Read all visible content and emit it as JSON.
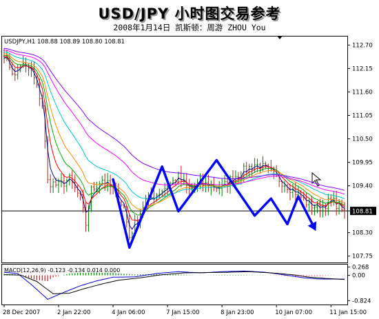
{
  "page": {
    "title": "USD/JPY 小时图交易参考",
    "subtitle": "2008年1月14日   凯斯顿：周游 ZHOU You"
  },
  "chart_data": [
    {
      "type": "line",
      "symbol_label": "USDJPY,H1  108.88 108.89 108.80 108.81",
      "ylim": [
        107.6,
        112.9
      ],
      "y_ticks": [
        "112.70",
        "112.15",
        "111.60",
        "111.05",
        "110.50",
        "109.95",
        "109.40",
        "108.81",
        "108.30",
        "107.75"
      ],
      "y_tick_values": [
        112.7,
        112.15,
        111.6,
        111.05,
        110.5,
        109.95,
        109.4,
        108.81,
        108.3,
        107.75
      ],
      "current_price": 108.81,
      "x_ticks": [
        "28 Dec 2007",
        "2 Jan 22:00",
        "4 Jan 06:00",
        "7 Jan 15:00",
        "8 Jan 23:00",
        "10 Jan 07:00",
        "11 Jan 15:00"
      ],
      "x_tick_index": [
        0,
        20,
        40,
        60,
        80,
        100,
        120
      ],
      "bar_count": 126,
      "price_anchors": [
        [
          0,
          112.5
        ],
        [
          4,
          111.95
        ],
        [
          6,
          112.25
        ],
        [
          10,
          112.1
        ],
        [
          12,
          111.7
        ],
        [
          14,
          111.3
        ],
        [
          16,
          109.5
        ],
        [
          20,
          109.4
        ],
        [
          24,
          109.55
        ],
        [
          28,
          109.1
        ],
        [
          30,
          108.5
        ],
        [
          32,
          109.3
        ],
        [
          36,
          109.55
        ],
        [
          40,
          109.3
        ],
        [
          44,
          108.9
        ],
        [
          46,
          108.2
        ],
        [
          48,
          108.5
        ],
        [
          52,
          109.05
        ],
        [
          56,
          109.2
        ],
        [
          60,
          109.4
        ],
        [
          64,
          109.6
        ],
        [
          68,
          109.3
        ],
        [
          72,
          109.45
        ],
        [
          76,
          109.4
        ],
        [
          80,
          109.35
        ],
        [
          84,
          109.6
        ],
        [
          88,
          109.75
        ],
        [
          92,
          109.9
        ],
        [
          96,
          109.8
        ],
        [
          100,
          109.6
        ],
        [
          104,
          109.4
        ],
        [
          108,
          109.2
        ],
        [
          112,
          108.95
        ],
        [
          116,
          108.9
        ],
        [
          120,
          109.05
        ],
        [
          124,
          108.9
        ],
        [
          125,
          108.81
        ]
      ],
      "moving_averages": [
        {
          "color": "#000080",
          "period": 3
        },
        {
          "color": "#ff0000",
          "period": 6
        },
        {
          "color": "#00aa00",
          "period": 10
        },
        {
          "color": "#ff8c00",
          "period": 15
        },
        {
          "color": "#00c8c8",
          "period": 25
        },
        {
          "color": "#ff00ff",
          "period": 40
        },
        {
          "color": "#8000ff",
          "period": 55
        }
      ],
      "annotation_path": [
        [
          40,
          109.55
        ],
        [
          46,
          107.95
        ],
        [
          58,
          109.85
        ],
        [
          64,
          108.8
        ],
        [
          78,
          110.0
        ],
        [
          92,
          108.7
        ],
        [
          98,
          109.1
        ],
        [
          104,
          108.5
        ],
        [
          108,
          109.15
        ],
        [
          114,
          108.4
        ]
      ],
      "annotation_color": "#0000ff",
      "colors": {
        "bull": "#008000",
        "bear": "#b22222"
      }
    },
    {
      "type": "bar",
      "label": "MACD(12,26,9) -0.123 -0.134 0.014 0.000",
      "ylim": [
        -0.95,
        0.35
      ],
      "y_ticks": [
        "0.268",
        "0.00",
        "-0.824"
      ],
      "y_tick_values": [
        0.268,
        0.0,
        -0.824
      ],
      "macd_anchors": [
        [
          0,
          0.1
        ],
        [
          5,
          0.06
        ],
        [
          10,
          -0.3
        ],
        [
          16,
          -0.78
        ],
        [
          22,
          -0.55
        ],
        [
          28,
          -0.34
        ],
        [
          34,
          -0.18
        ],
        [
          40,
          -0.06
        ],
        [
          48,
          -0.05
        ],
        [
          56,
          0.06
        ],
        [
          64,
          0.12
        ],
        [
          72,
          0.08
        ],
        [
          80,
          0.12
        ],
        [
          88,
          0.14
        ],
        [
          96,
          0.1
        ],
        [
          104,
          0.0
        ],
        [
          110,
          -0.08
        ],
        [
          116,
          -0.12
        ],
        [
          125,
          -0.123
        ]
      ],
      "signal_anchors": [
        [
          0,
          0.02
        ],
        [
          6,
          0.01
        ],
        [
          12,
          -0.2
        ],
        [
          18,
          -0.6
        ],
        [
          24,
          -0.58
        ],
        [
          30,
          -0.42
        ],
        [
          36,
          -0.28
        ],
        [
          42,
          -0.16
        ],
        [
          50,
          -0.08
        ],
        [
          58,
          0.02
        ],
        [
          66,
          0.08
        ],
        [
          74,
          0.09
        ],
        [
          82,
          0.1
        ],
        [
          90,
          0.12
        ],
        [
          98,
          0.08
        ],
        [
          106,
          0.02
        ],
        [
          112,
          -0.06
        ],
        [
          118,
          -0.1
        ],
        [
          125,
          -0.134
        ]
      ],
      "colors": {
        "macd": "#0000cd",
        "signal": "#000000",
        "hist_up": "#008000",
        "hist_down": "#ff0000"
      }
    }
  ]
}
